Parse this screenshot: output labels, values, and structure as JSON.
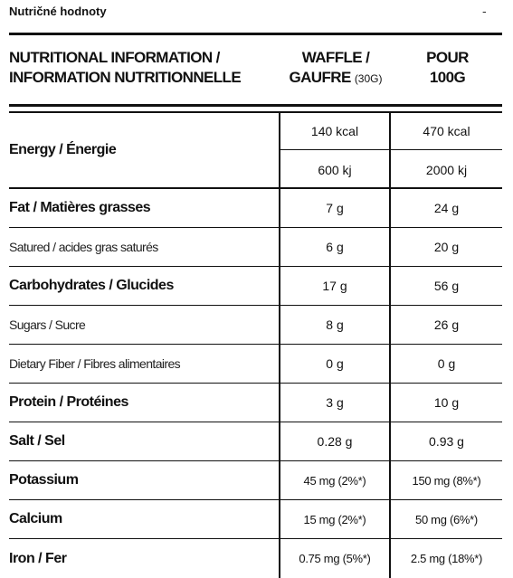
{
  "header": {
    "title": "Nutričné hodnoty",
    "toggle": "-"
  },
  "table": {
    "columns": {
      "nutrient_line1": "NUTRITIONAL INFORMATION /",
      "nutrient_line2": "INFORMATION NUTRITIONNELLE",
      "waffle_line1": "WAFFLE /",
      "waffle_line2": "GAUFRE",
      "waffle_weight": "(30G)",
      "per_line1": "POUR",
      "per_line2": "100G"
    },
    "energy": {
      "label": "Energy / Énergie",
      "waffle_kcal": "140 kcal",
      "per100_kcal": "470 kcal",
      "waffle_kj": "600 kj",
      "per100_kj": "2000 kj"
    },
    "rows": [
      {
        "label": "Fat / Matières grasses",
        "waffle": "7 g",
        "per100": "24 g"
      },
      {
        "label": "Satured / acides gras saturés",
        "waffle": "6 g",
        "per100": "20 g"
      },
      {
        "label": "Carbohydrates / Glucides",
        "waffle": "17 g",
        "per100": "56 g"
      },
      {
        "label": "Sugars / Sucre",
        "waffle": "8 g",
        "per100": "26 g"
      },
      {
        "label": "Dietary Fiber / Fibres alimentaires",
        "waffle": "0 g",
        "per100": "0 g"
      },
      {
        "label": "Protein / Protéines",
        "waffle": "3 g",
        "per100": "10 g"
      },
      {
        "label": "Salt / Sel",
        "waffle": "0.28 g",
        "per100": "0.93 g"
      },
      {
        "label": "Potassium",
        "waffle": "45 mg (2%*)",
        "per100": "150 mg (8%*)"
      },
      {
        "label": "Calcium",
        "waffle": "15 mg (2%*)",
        "per100": "50 mg (6%*)"
      },
      {
        "label": "Iron / Fer",
        "waffle": "0.75 mg (5%*)",
        "per100": "2.5 mg (18%*)"
      }
    ]
  }
}
